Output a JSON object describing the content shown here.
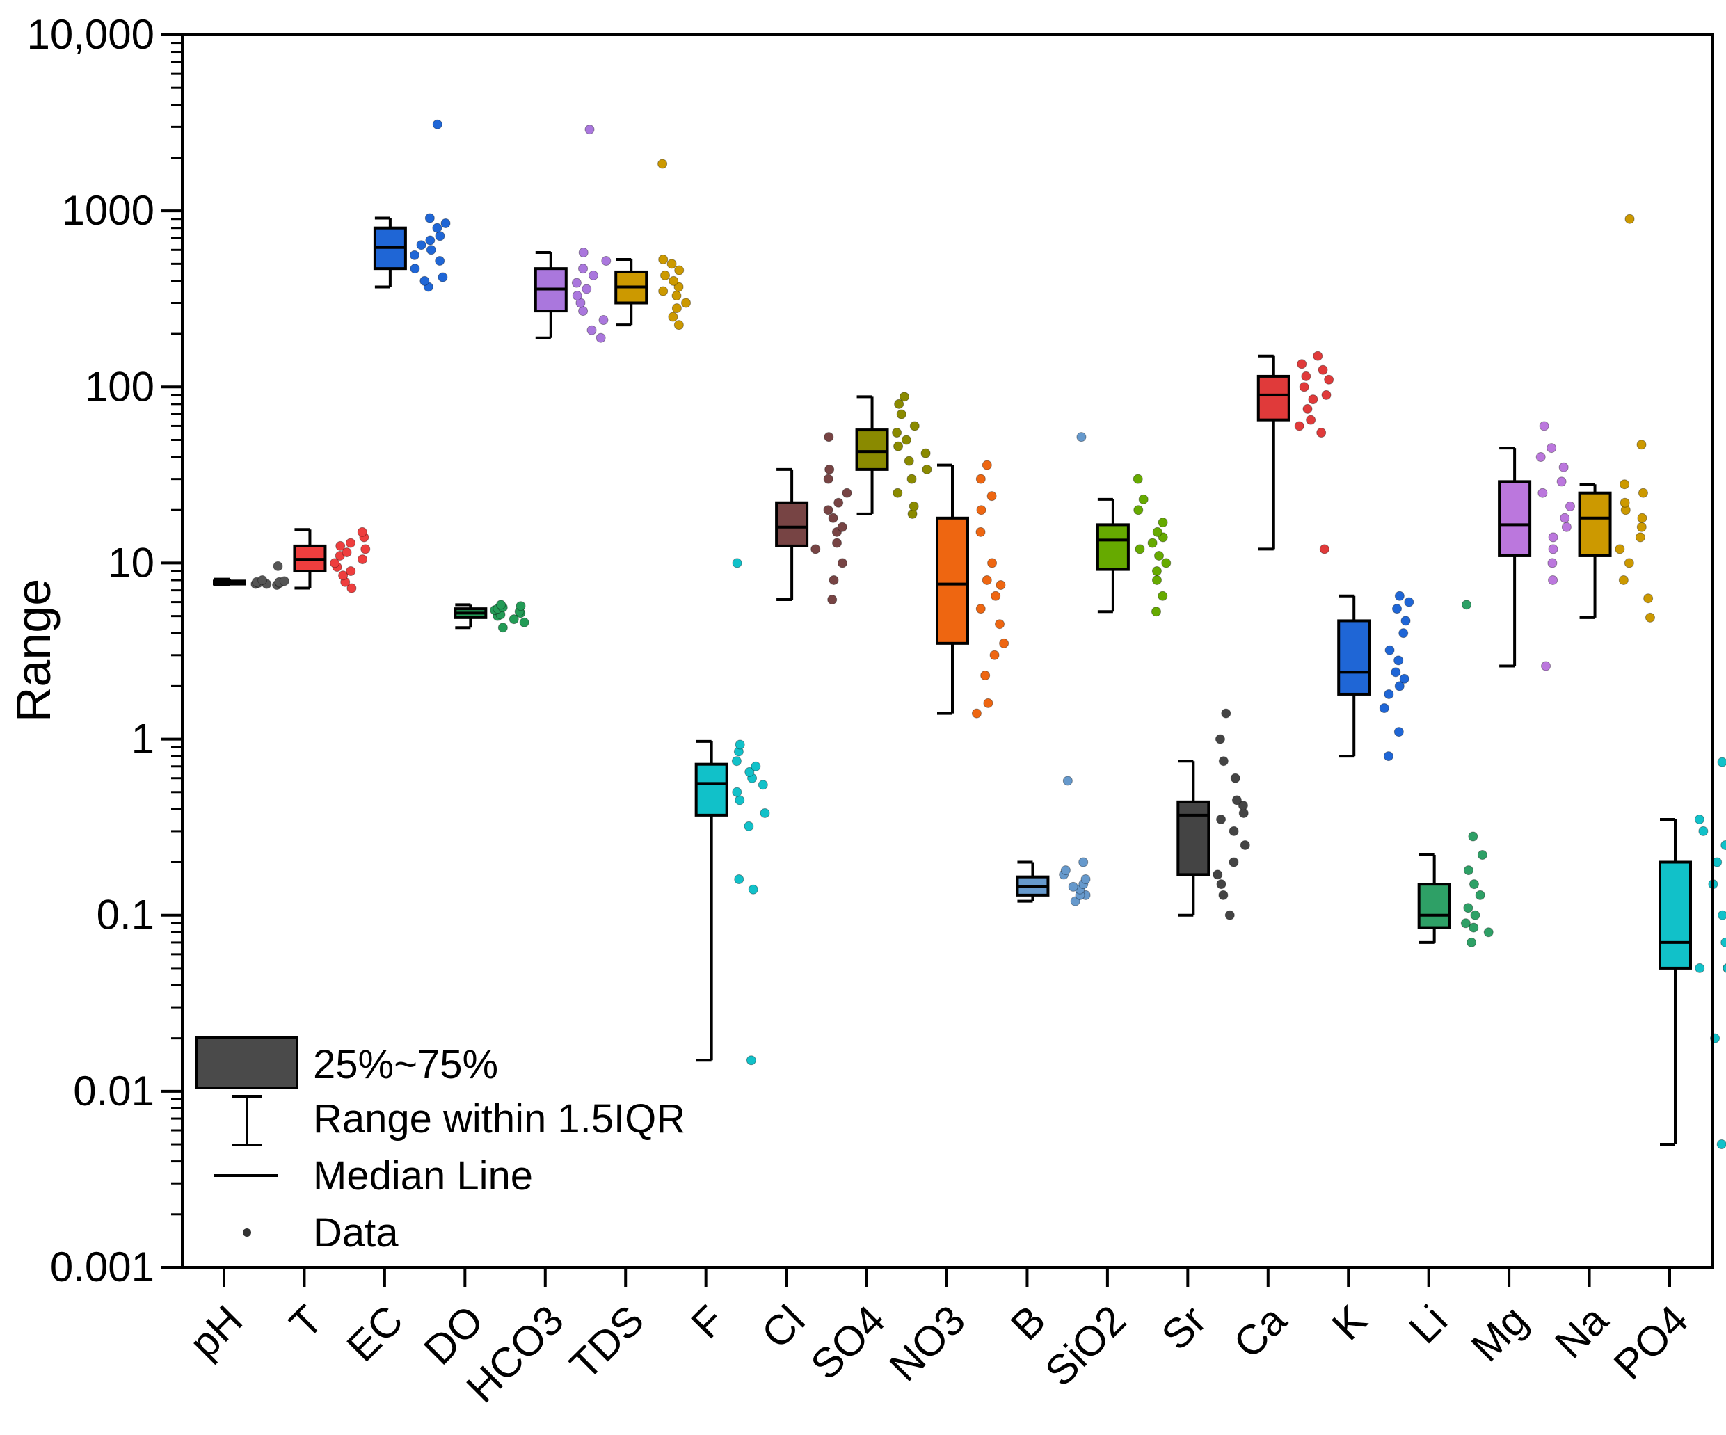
{
  "chart_data": {
    "type": "box",
    "title": "",
    "xlabel": "",
    "ylabel": "Range",
    "yscale": "log",
    "ylim": [
      0.001,
      10000
    ],
    "yticks": [
      0.001,
      0.01,
      0.1,
      1,
      10,
      100,
      1000,
      10000
    ],
    "ytick_labels": [
      "0.001",
      "0.01",
      "0.1",
      "1",
      "10",
      "100",
      "1000",
      "10,000"
    ],
    "categories": [
      "pH",
      "T",
      "EC",
      "DO",
      "HCO3",
      "TDS",
      "F",
      "Cl",
      "SO4",
      "NO3",
      "B",
      "SiO2",
      "Sr",
      "Ca",
      "K",
      "Li",
      "Mg",
      "Na",
      "PO4"
    ],
    "series": [
      {
        "name": "pH",
        "color": "#555555",
        "q1": 7.6,
        "median": 7.75,
        "q3": 7.9,
        "whisker_low": 7.5,
        "whisker_high": 8.1,
        "data": [
          7.5,
          7.6,
          7.6,
          7.7,
          7.7,
          7.8,
          7.8,
          7.9,
          8.0,
          9.6
        ]
      },
      {
        "name": "T",
        "color": "#ee3e3e",
        "q1": 9,
        "median": 10.5,
        "q3": 12.5,
        "whisker_low": 7.2,
        "whisker_high": 15.5,
        "data": [
          7.2,
          7.8,
          8.5,
          9.0,
          9.5,
          10.0,
          10.5,
          11.0,
          11.5,
          12.0,
          12.5,
          13.0,
          14.0,
          15.0
        ]
      },
      {
        "name": "EC",
        "color": "#1f66d6",
        "q1": 470,
        "median": 620,
        "q3": 800,
        "whisker_low": 370,
        "whisker_high": 910,
        "data": [
          370,
          400,
          420,
          470,
          520,
          560,
          600,
          640,
          680,
          720,
          800,
          850,
          910,
          3100
        ]
      },
      {
        "name": "DO",
        "color": "#239b56",
        "q1": 4.9,
        "median": 5.2,
        "q3": 5.5,
        "whisker_low": 4.3,
        "whisker_high": 5.8,
        "data": [
          4.3,
          4.6,
          4.8,
          5.0,
          5.1,
          5.2,
          5.3,
          5.4,
          5.5,
          5.6,
          5.7,
          5.8
        ]
      },
      {
        "name": "HCO3",
        "color": "#aa77dd",
        "q1": 270,
        "median": 360,
        "q3": 470,
        "whisker_low": 190,
        "whisker_high": 580,
        "data": [
          190,
          210,
          240,
          270,
          300,
          330,
          360,
          390,
          430,
          470,
          520,
          580,
          2900
        ]
      },
      {
        "name": "TDS",
        "color": "#cc9900",
        "q1": 300,
        "median": 370,
        "q3": 450,
        "whisker_low": 225,
        "whisker_high": 530,
        "data": [
          225,
          250,
          280,
          300,
          330,
          350,
          370,
          400,
          430,
          460,
          500,
          530,
          1850
        ]
      },
      {
        "name": "F",
        "color": "#11c1c9",
        "q1": 0.37,
        "median": 0.56,
        "q3": 0.72,
        "whisker_low": 0.015,
        "whisker_high": 0.97,
        "data": [
          0.015,
          0.14,
          0.16,
          0.32,
          0.38,
          0.45,
          0.5,
          0.55,
          0.6,
          0.65,
          0.7,
          0.75,
          0.85,
          0.93,
          10
        ]
      },
      {
        "name": "Cl",
        "color": "#774444",
        "q1": 12.5,
        "median": 16,
        "q3": 22,
        "whisker_low": 6.2,
        "whisker_high": 34,
        "data": [
          6.2,
          8.0,
          10.0,
          12.0,
          13.0,
          15.0,
          16.0,
          18.0,
          20.0,
          22.0,
          25.0,
          30.0,
          34.0,
          52.0
        ]
      },
      {
        "name": "SO4",
        "color": "#8a8a00",
        "q1": 34,
        "median": 43,
        "q3": 57,
        "whisker_low": 19,
        "whisker_high": 88,
        "data": [
          19,
          21,
          25,
          30,
          34,
          38,
          42,
          46,
          50,
          55,
          60,
          70,
          80,
          88
        ]
      },
      {
        "name": "NO3",
        "color": "#ee6611",
        "q1": 3.5,
        "median": 7.6,
        "q3": 18,
        "whisker_low": 1.4,
        "whisker_high": 36,
        "data": [
          1.4,
          1.6,
          2.3,
          3.0,
          3.5,
          4.5,
          5.5,
          6.5,
          7.5,
          8.0,
          10.0,
          15.0,
          20.0,
          24.0,
          30.0,
          36.0
        ]
      },
      {
        "name": "B",
        "color": "#6699cc",
        "q1": 0.13,
        "median": 0.145,
        "q3": 0.165,
        "whisker_low": 0.12,
        "whisker_high": 0.2,
        "data": [
          0.12,
          0.13,
          0.13,
          0.14,
          0.145,
          0.15,
          0.16,
          0.17,
          0.18,
          0.2,
          0.58,
          52
        ]
      },
      {
        "name": "SiO2",
        "color": "#66aa00",
        "q1": 9.2,
        "median": 13.5,
        "q3": 16.5,
        "whisker_low": 5.3,
        "whisker_high": 23,
        "data": [
          5.3,
          6.5,
          8.0,
          9.0,
          10.0,
          11.0,
          12.0,
          13.0,
          14.0,
          15.0,
          17.0,
          20.0,
          23.0,
          30.0
        ]
      },
      {
        "name": "Sr",
        "color": "#444444",
        "q1": 0.17,
        "median": 0.37,
        "q3": 0.44,
        "whisker_low": 0.1,
        "whisker_high": 0.75,
        "data": [
          0.1,
          0.13,
          0.15,
          0.17,
          0.2,
          0.25,
          0.3,
          0.35,
          0.38,
          0.42,
          0.45,
          0.6,
          0.75,
          1.0,
          1.4
        ]
      },
      {
        "name": "Ca",
        "color": "#e03a3a",
        "q1": 65,
        "median": 90,
        "q3": 115,
        "whisker_low": 12,
        "whisker_high": 150,
        "data": [
          12,
          55,
          60,
          65,
          75,
          85,
          90,
          100,
          110,
          115,
          125,
          135,
          150
        ]
      },
      {
        "name": "K",
        "color": "#1f66d6",
        "q1": 1.8,
        "median": 2.4,
        "q3": 4.7,
        "whisker_low": 0.8,
        "whisker_high": 6.5,
        "data": [
          0.8,
          1.1,
          1.5,
          1.8,
          2.0,
          2.2,
          2.4,
          2.8,
          3.2,
          4.0,
          4.7,
          5.5,
          6.0,
          6.5
        ]
      },
      {
        "name": "Li",
        "color": "#2ea066",
        "q1": 0.085,
        "median": 0.1,
        "q3": 0.15,
        "whisker_low": 0.07,
        "whisker_high": 0.22,
        "data": [
          0.07,
          0.08,
          0.085,
          0.09,
          0.1,
          0.11,
          0.13,
          0.15,
          0.18,
          0.22,
          0.28,
          5.8
        ]
      },
      {
        "name": "Mg",
        "color": "#bb77dd",
        "q1": 11,
        "median": 16.5,
        "q3": 29,
        "whisker_low": 2.6,
        "whisker_high": 45,
        "data": [
          2.6,
          8.0,
          10.0,
          12.0,
          14.0,
          16.0,
          18.0,
          21.0,
          25.0,
          29.0,
          35.0,
          40.0,
          45.0,
          60.0
        ]
      },
      {
        "name": "Na",
        "color": "#cc9900",
        "q1": 11,
        "median": 18,
        "q3": 25,
        "whisker_low": 4.9,
        "whisker_high": 28,
        "data": [
          4.9,
          6.3,
          8.0,
          10.0,
          12.0,
          14.0,
          16.0,
          18.0,
          20.0,
          22.0,
          25.0,
          28.0,
          47.0,
          900
        ]
      },
      {
        "name": "PO4",
        "color": "#11c1c9",
        "q1": 0.05,
        "median": 0.07,
        "q3": 0.2,
        "whisker_low": 0.005,
        "whisker_high": 0.35,
        "data": [
          0.005,
          0.02,
          0.05,
          0.05,
          0.05,
          0.07,
          0.07,
          0.07,
          0.1,
          0.15,
          0.2,
          0.25,
          0.3,
          0.35,
          0.74
        ]
      }
    ],
    "legend": {
      "placement": "bottom-left",
      "entries": [
        "25%~75%",
        "Range within 1.5IQR",
        "Median Line",
        "Data"
      ]
    }
  }
}
